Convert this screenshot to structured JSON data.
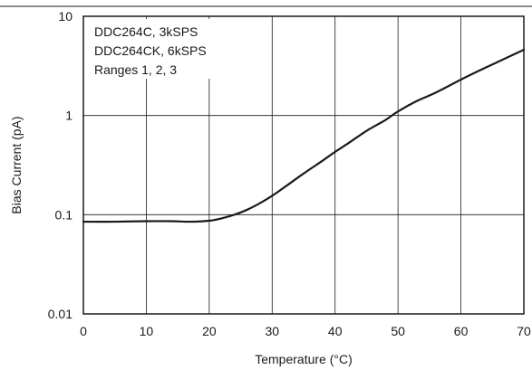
{
  "chart_data": {
    "type": "line",
    "title": "",
    "xlabel": "Temperature (°C)",
    "ylabel": "Bias Current (pA)",
    "xlim": [
      0,
      70
    ],
    "ylim": [
      0.01,
      10
    ],
    "yscale": "log",
    "grid": true,
    "x_ticks": [
      0,
      10,
      20,
      30,
      40,
      50,
      60,
      70
    ],
    "x_tick_labels": [
      "0",
      "10",
      "20",
      "30",
      "40",
      "50",
      "60",
      "70"
    ],
    "y_ticks": [
      0.01,
      0.1,
      1,
      10
    ],
    "y_tick_labels": [
      "0.01",
      "0.1",
      "1",
      "10"
    ],
    "annotations": [
      "DDC264C, 3kSPS",
      "DDC264CK, 6kSPS",
      "Ranges 1, 2, 3"
    ],
    "series": [
      {
        "name": "",
        "x": [
          0,
          5,
          10,
          14,
          17,
          20,
          22,
          24,
          26,
          28,
          30,
          32,
          35,
          38,
          40,
          42,
          45,
          48,
          50,
          53,
          56,
          60,
          63,
          66,
          70
        ],
        "y": [
          0.085,
          0.085,
          0.086,
          0.086,
          0.085,
          0.087,
          0.092,
          0.1,
          0.112,
          0.13,
          0.155,
          0.19,
          0.26,
          0.35,
          0.43,
          0.52,
          0.7,
          0.9,
          1.1,
          1.4,
          1.7,
          2.3,
          2.85,
          3.5,
          4.6
        ]
      }
    ]
  }
}
